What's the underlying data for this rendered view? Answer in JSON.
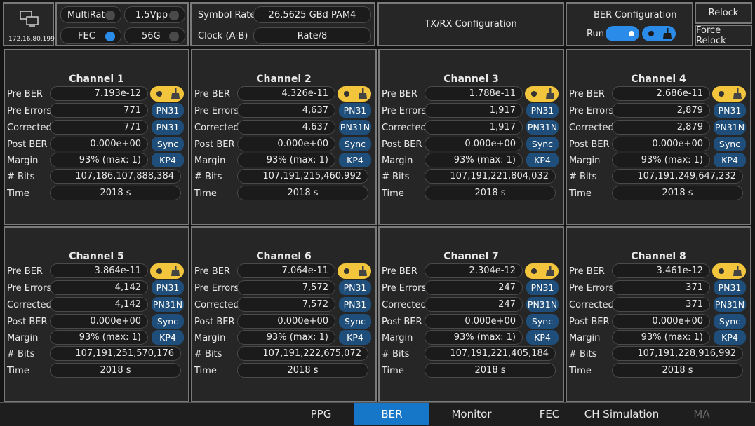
{
  "device": {
    "ip": "172.16.80.199",
    "icon": "network-computers-icon"
  },
  "top": {
    "multirate_label": "MultiRate",
    "fec_label": "FEC",
    "vpp_label": "1.5Vpp",
    "rate_label": "56G",
    "symbol_rate_label": "Symbol Rate",
    "symbol_rate_value": "26.5625 GBd PAM4",
    "clock_label": "Clock (A-B)",
    "clock_value": "Rate/8",
    "txrx_label": "TX/RX Configuration",
    "ber_config_label": "BER Configuration",
    "run_label": "Run",
    "relock_label": "Relock",
    "force_relock_label": "Force Relock"
  },
  "row_labels": {
    "pre_ber": "Pre BER",
    "pre_errors": "Pre Errors",
    "corrected": "Corrected",
    "post_ber": "Post BER",
    "margin": "Margin",
    "bits": "# Bits",
    "time": "Time"
  },
  "channels": [
    {
      "title": "Channel 1",
      "pre_ber": "7.193e-12",
      "pre_errors": "771",
      "corrected": "771",
      "post_ber": "0.000e+00",
      "margin": "93% (max: 1)",
      "bits": "107,186,107,888,384",
      "time": "2018 s",
      "tag1": "PN31",
      "tag2": "PN31",
      "tag3": "Sync",
      "tag4": "KP4"
    },
    {
      "title": "Channel 2",
      "pre_ber": "4.326e-11",
      "pre_errors": "4,637",
      "corrected": "4,637",
      "post_ber": "0.000e+00",
      "margin": "93% (max: 1)",
      "bits": "107,191,215,460,992",
      "time": "2018 s",
      "tag1": "PN31",
      "tag2": "PN31N",
      "tag3": "Sync",
      "tag4": "KP4"
    },
    {
      "title": "Channel 3",
      "pre_ber": "1.788e-11",
      "pre_errors": "1,917",
      "corrected": "1,917",
      "post_ber": "0.000e+00",
      "margin": "93% (max: 1)",
      "bits": "107,191,221,804,032",
      "time": "2018 s",
      "tag1": "PN31",
      "tag2": "PN31N",
      "tag3": "Sync",
      "tag4": "KP4"
    },
    {
      "title": "Channel 4",
      "pre_ber": "2.686e-11",
      "pre_errors": "2,879",
      "corrected": "2,879",
      "post_ber": "0.000e+00",
      "margin": "93% (max: 1)",
      "bits": "107,191,249,647,232",
      "time": "2018 s",
      "tag1": "PN31",
      "tag2": "PN31N",
      "tag3": "Sync",
      "tag4": "KP4"
    },
    {
      "title": "Channel 5",
      "pre_ber": "3.864e-11",
      "pre_errors": "4,142",
      "corrected": "4,142",
      "post_ber": "0.000e+00",
      "margin": "93% (max: 1)",
      "bits": "107,191,251,570,176",
      "time": "2018 s",
      "tag1": "PN31",
      "tag2": "PN31N",
      "tag3": "Sync",
      "tag4": "KP4"
    },
    {
      "title": "Channel 6",
      "pre_ber": "7.064e-11",
      "pre_errors": "7,572",
      "corrected": "7,572",
      "post_ber": "0.000e+00",
      "margin": "93% (max: 1)",
      "bits": "107,191,222,675,072",
      "time": "2018 s",
      "tag1": "PN31",
      "tag2": "PN31",
      "tag3": "Sync",
      "tag4": "KP4"
    },
    {
      "title": "Channel 7",
      "pre_ber": "2.304e-12",
      "pre_errors": "247",
      "corrected": "247",
      "post_ber": "0.000e+00",
      "margin": "93% (max: 1)",
      "bits": "107,191,221,405,184",
      "time": "2018 s",
      "tag1": "PN31",
      "tag2": "PN31N",
      "tag3": "Sync",
      "tag4": "KP4"
    },
    {
      "title": "Channel 8",
      "pre_ber": "3.461e-12",
      "pre_errors": "371",
      "corrected": "371",
      "post_ber": "0.000e+00",
      "margin": "93% (max: 1)",
      "bits": "107,191,228,916,992",
      "time": "2018 s",
      "tag1": "PN31",
      "tag2": "PN31N",
      "tag3": "Sync",
      "tag4": "KP4"
    }
  ],
  "tabs": [
    {
      "label": "PPG",
      "state": "normal"
    },
    {
      "label": "BER",
      "state": "active"
    },
    {
      "label": "Monitor",
      "state": "normal"
    },
    {
      "label": "FEC",
      "state": "normal"
    },
    {
      "label": "CH Simulation",
      "state": "normal"
    },
    {
      "label": "MA",
      "state": "disabled"
    }
  ],
  "colors": {
    "accent": "#1677c8",
    "toggle_on": "#2a8ce8",
    "ber_toggle": "#f2c53d",
    "tag_bg": "#1f4e7a",
    "panel_border": "#7a7a7a"
  }
}
